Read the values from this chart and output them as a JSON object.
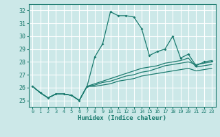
{
  "title": "",
  "xlabel": "Humidex (Indice chaleur)",
  "ylabel": "",
  "bg_color": "#cce8e8",
  "grid_color": "#ffffff",
  "line_color": "#1a7a6e",
  "xlim": [
    -0.5,
    23.5
  ],
  "ylim": [
    24.5,
    32.5
  ],
  "yticks": [
    25,
    26,
    27,
    28,
    29,
    30,
    31,
    32
  ],
  "xticks": [
    0,
    1,
    2,
    3,
    4,
    5,
    6,
    7,
    8,
    9,
    10,
    11,
    12,
    13,
    14,
    15,
    16,
    17,
    18,
    19,
    20,
    21,
    22,
    23
  ],
  "lines": [
    [
      26.1,
      25.6,
      25.2,
      25.5,
      25.5,
      25.4,
      25.0,
      26.1,
      28.4,
      29.4,
      31.9,
      31.6,
      31.6,
      31.5,
      30.6,
      28.5,
      28.8,
      29.0,
      30.0,
      28.3,
      28.6,
      27.7,
      28.0,
      28.1
    ],
    [
      26.1,
      25.6,
      25.2,
      25.5,
      25.5,
      25.4,
      25.0,
      26.1,
      26.2,
      26.4,
      26.5,
      26.7,
      26.9,
      27.0,
      27.2,
      27.3,
      27.5,
      27.7,
      27.8,
      27.9,
      28.0,
      27.8,
      27.9,
      28.0
    ],
    [
      26.1,
      25.6,
      25.2,
      25.5,
      25.5,
      25.4,
      25.0,
      26.1,
      26.1,
      26.2,
      26.3,
      26.5,
      26.6,
      26.7,
      26.9,
      27.0,
      27.1,
      27.2,
      27.3,
      27.4,
      27.5,
      27.3,
      27.4,
      27.5
    ],
    [
      26.1,
      25.6,
      25.2,
      25.5,
      25.5,
      25.4,
      25.0,
      26.1,
      26.3,
      26.5,
      26.7,
      26.9,
      27.1,
      27.3,
      27.5,
      27.6,
      27.7,
      27.9,
      28.0,
      28.1,
      28.3,
      27.6,
      27.7,
      27.8
    ]
  ]
}
